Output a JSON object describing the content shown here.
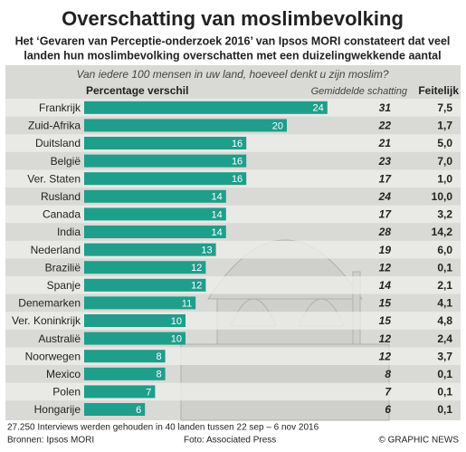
{
  "chart_data": {
    "type": "bar",
    "title": "Overschatting van moslimbevolking",
    "subtitle": [
      "Het ‘Gevaren van Perceptie-onderzoek 2016’ van Ipsos MORI constateert dat veel",
      "landen hun moslimbevolking overschatten met een duizelingwekkende aantal"
    ],
    "question": "Van iedere 100 mensen in uw land, hoeveel denkt u zijn moslim?",
    "categories": [
      "Frankrijk",
      "Zuid-Afrika",
      "Duitsland",
      "België",
      "Ver. Staten",
      "Rusland",
      "Canada",
      "India",
      "Nederland",
      "Brazilië",
      "Spanje",
      "Denemarken",
      "Ver. Koninkrijk",
      "Australië",
      "Noorwegen",
      "Mexico",
      "Polen",
      "Hongarije"
    ],
    "series": [
      {
        "name": "Percentage verschil",
        "color": "#1f9e8c",
        "values": [
          24,
          20,
          16,
          16,
          16,
          14,
          14,
          14,
          13,
          12,
          12,
          11,
          10,
          10,
          8,
          8,
          7,
          6
        ]
      },
      {
        "name": "Gemiddelde schatting",
        "values": [
          31,
          22,
          21,
          23,
          17,
          24,
          17,
          28,
          19,
          12,
          14,
          15,
          15,
          12,
          12,
          8,
          7,
          6
        ]
      },
      {
        "name": "Feitelijk",
        "values": [
          7.5,
          1.7,
          5.0,
          7.0,
          1.0,
          10.0,
          3.2,
          14.2,
          6.0,
          0.1,
          2.1,
          4.1,
          4.8,
          2.4,
          3.7,
          0.1,
          0.1,
          0.1
        ],
        "value_labels": [
          "7,5",
          "1,7",
          "5,0",
          "7,0",
          "1,0",
          "10,0",
          "3,2",
          "14,2",
          "6,0",
          "0,1",
          "2,1",
          "4,1",
          "4,8",
          "2,4",
          "3,7",
          "0,1",
          "0,1",
          "0,1"
        ]
      }
    ],
    "note": "27.250 Interviews werden gehouden in 40 landen tussen 22 sep – 6 nov 2016",
    "source": "Bronnen: Ipsos MORI",
    "photo_credit": "Foto: Associated Press",
    "copyright": "© GRAPHIC NEWS"
  }
}
